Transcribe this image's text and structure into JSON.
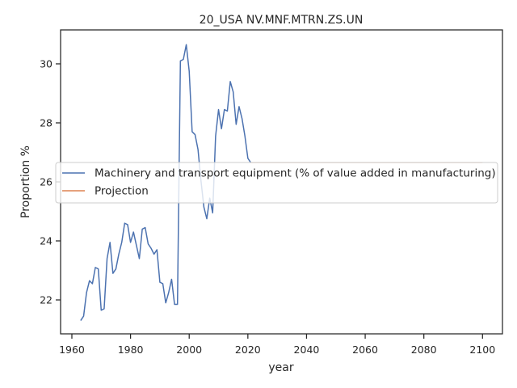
{
  "chart_data": {
    "type": "line",
    "title": "20_USA NV.MNF.MTRN.ZS.UN",
    "xlabel": "year",
    "ylabel": "Proportion %",
    "xlim": [
      1956.15,
      2106.8
    ],
    "ylim": [
      20.85,
      31.15
    ],
    "xticks": [
      1960,
      1980,
      2000,
      2020,
      2040,
      2060,
      2080,
      2100
    ],
    "yticks": [
      22,
      24,
      26,
      28,
      30
    ],
    "grid": false,
    "legend_position": "center-left",
    "series": [
      {
        "name": "Machinery and transport equipment (% of value added in manufacturing)",
        "color": "#4c72b0",
        "x": [
          1963,
          1964,
          1965,
          1966,
          1967,
          1968,
          1969,
          1970,
          1971,
          1972,
          1973,
          1974,
          1975,
          1976,
          1977,
          1978,
          1979,
          1980,
          1981,
          1982,
          1983,
          1984,
          1985,
          1986,
          1987,
          1988,
          1989,
          1990,
          1991,
          1992,
          1993,
          1994,
          1995,
          1996,
          1997,
          1998,
          1999,
          2000,
          2001,
          2002,
          2003,
          2004,
          2005,
          2006,
          2007,
          2008,
          2009,
          2010,
          2011,
          2012,
          2013,
          2014,
          2015,
          2016,
          2017,
          2018,
          2019,
          2020,
          2021
        ],
        "y": [
          21.3,
          21.45,
          22.25,
          22.65,
          22.55,
          23.1,
          23.05,
          21.65,
          21.7,
          23.4,
          23.95,
          22.9,
          23.05,
          23.55,
          23.95,
          24.6,
          24.55,
          23.95,
          24.3,
          23.85,
          23.4,
          24.4,
          24.45,
          23.9,
          23.75,
          23.55,
          23.7,
          22.6,
          22.55,
          21.9,
          22.25,
          22.7,
          21.85,
          21.85,
          30.1,
          30.15,
          30.65,
          29.75,
          27.7,
          27.6,
          27.1,
          26.05,
          25.15,
          24.75,
          25.45,
          24.95,
          27.55,
          28.45,
          27.8,
          28.45,
          28.4,
          29.4,
          29.05,
          27.95,
          28.55,
          28.15,
          27.55,
          26.8,
          26.65
        ]
      },
      {
        "name": "Projection",
        "color": "#dd8452",
        "x": [
          2021,
          2100
        ],
        "y": [
          26.65,
          26.65
        ]
      }
    ]
  }
}
